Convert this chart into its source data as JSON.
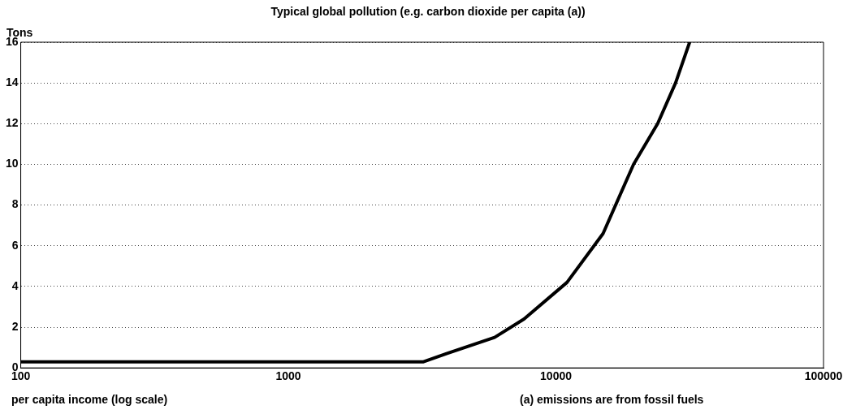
{
  "chart_data": {
    "type": "line",
    "title": "Typical global pollution (e.g. carbon dioxide per capita (a))",
    "xlabel": "per capita income (log scale)",
    "ylabel": "Tons",
    "annotations": [
      "(a) emissions are from fossil fuels"
    ],
    "log": "x",
    "grid": "y",
    "marker": "none",
    "line_style": "solid",
    "x": [
      100,
      300,
      1000,
      3200,
      3900,
      5900,
      7600,
      11000,
      15000,
      19500,
      24000,
      28000,
      31600
    ],
    "series": [
      {
        "color": "#000000",
        "values": [
          0.3,
          0.3,
          0.3,
          0.3,
          0.7,
          1.5,
          2.4,
          4.2,
          6.6,
          10,
          12,
          14,
          16
        ]
      }
    ],
    "xlim": [
      100,
      100000
    ],
    "xticks": [
      100,
      1000,
      10000,
      100000
    ],
    "ylim": [
      0,
      16
    ],
    "yticks": [
      0,
      2,
      4,
      6,
      8,
      10,
      12,
      14,
      16
    ]
  }
}
